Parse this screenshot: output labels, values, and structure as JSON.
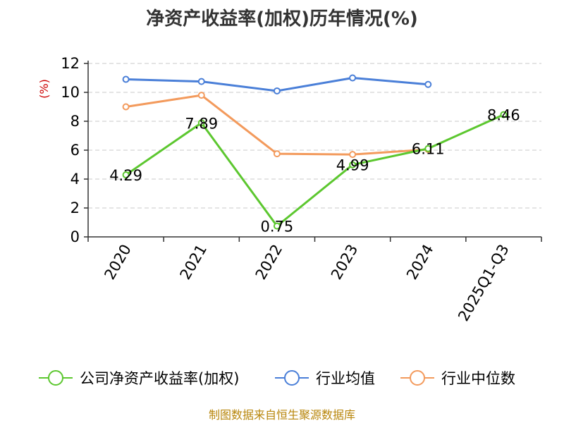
{
  "chart_data": {
    "type": "line",
    "title": "净资产收益率(加权)历年情况(%)",
    "ylabel": "(%)",
    "categories": [
      "2020",
      "2021",
      "2022",
      "2023",
      "2024",
      "2025Q1-Q3"
    ],
    "ylim": [
      0,
      12
    ],
    "yticks": [
      0,
      2,
      4,
      6,
      8,
      10,
      12
    ],
    "grid": true,
    "legend_position": "bottom",
    "series": [
      {
        "name": "公司净资产收益率(加权)",
        "color": "#5cc72f",
        "values": [
          4.29,
          7.89,
          0.75,
          4.99,
          6.11,
          8.46
        ],
        "labels": [
          "4.29",
          "7.89",
          "0.75",
          "4.99",
          "6.11",
          "8.46"
        ]
      },
      {
        "name": "行业均值",
        "color": "#4a7fd8",
        "values": [
          10.9,
          10.75,
          10.1,
          11.0,
          10.55,
          null
        ]
      },
      {
        "name": "行业中位数",
        "color": "#f39a5c",
        "values": [
          9.0,
          9.8,
          5.75,
          5.7,
          6.05,
          null
        ]
      }
    ]
  },
  "ylabel_color": "#cc0000",
  "source": {
    "text": "制图数据来自恒生聚源数据库",
    "color": "#b8860b"
  }
}
